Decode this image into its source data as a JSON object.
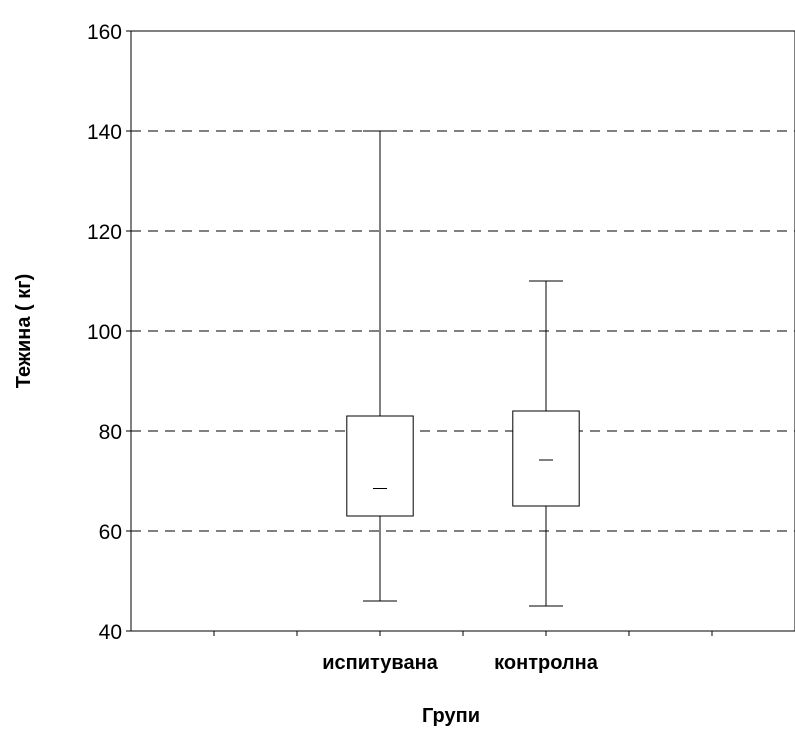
{
  "chart_data": {
    "type": "boxplot",
    "title": "",
    "xlabel": "Групи",
    "ylabel": "Тежина  ( кг)",
    "ylim": [
      40,
      160
    ],
    "yticks": [
      40,
      60,
      80,
      100,
      120,
      140,
      160
    ],
    "categories": [
      "испитувана",
      "контролна"
    ],
    "boxes": [
      {
        "category": "испитувана",
        "min": 46,
        "q1": 63,
        "median": 68.5,
        "q3": 83,
        "max": 140
      },
      {
        "category": "контролна",
        "min": 45,
        "q1": 65,
        "median": 74.2,
        "q3": 84,
        "max": 110
      }
    ],
    "grid": "horizontal-dashed",
    "legend": "none",
    "colors": {
      "line": "#000000",
      "box_fill": "#ffffff"
    }
  }
}
